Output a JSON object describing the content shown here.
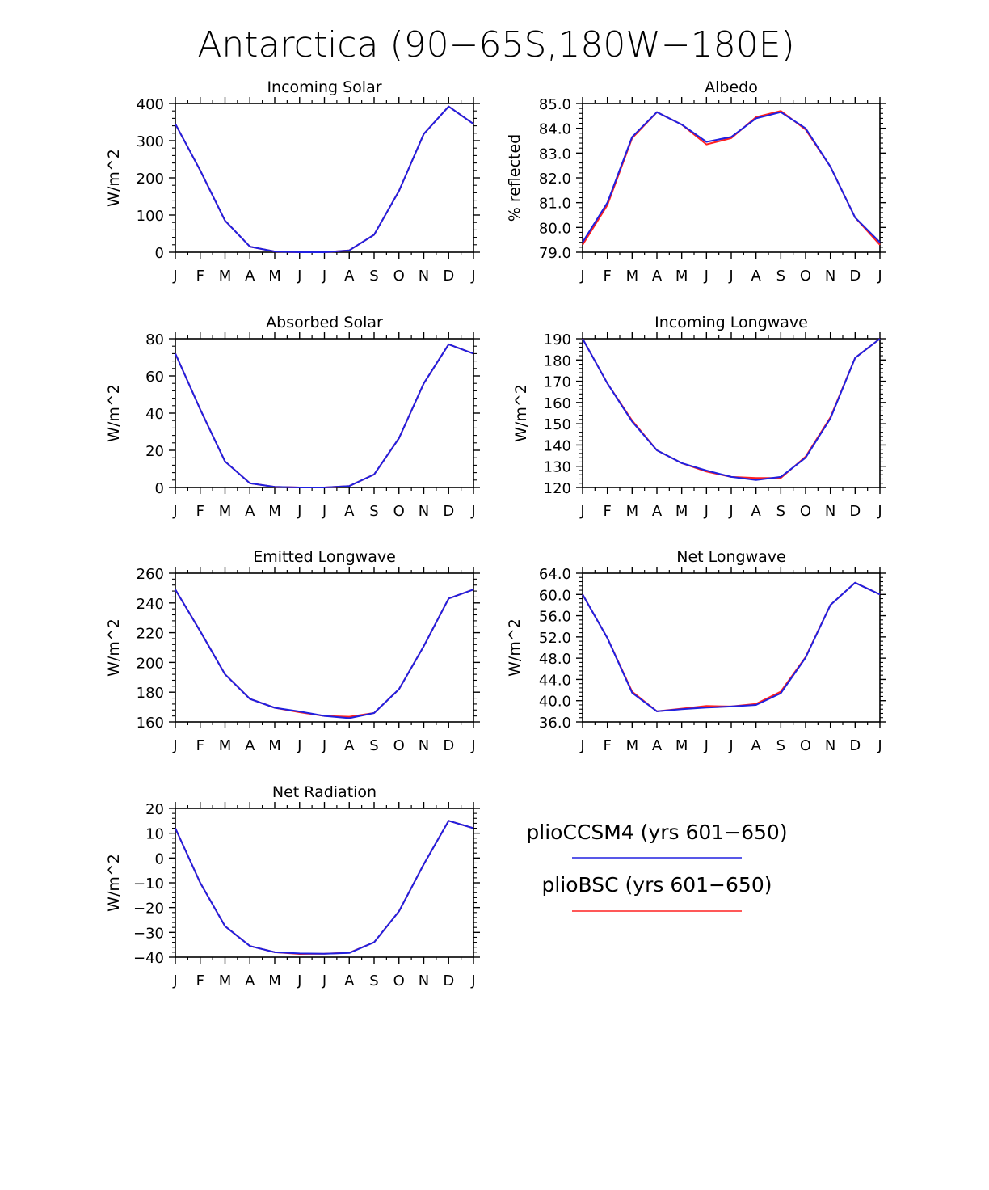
{
  "title": "Antarctica (90−65S,180W−180E)",
  "legend": {
    "items": [
      {
        "label": "plioCCSM4 (yrs 601−650)",
        "color": "#2020e0"
      },
      {
        "label": "plioBSC (yrs 601−650)",
        "color": "#ff2020"
      }
    ]
  },
  "months": [
    "J",
    "F",
    "M",
    "A",
    "M",
    "J",
    "J",
    "A",
    "S",
    "O",
    "N",
    "D",
    "J"
  ],
  "chart_data": [
    {
      "type": "line",
      "title": "Incoming Solar",
      "ylabel": "W/m^2",
      "ylim": [
        0,
        400
      ],
      "yticks": [
        "0",
        "100",
        "200",
        "300",
        "400"
      ],
      "ytick_values": [
        0,
        100,
        200,
        300,
        400
      ],
      "series": [
        {
          "name": "plioBSC (yrs 601−650)",
          "color": "#ff2020",
          "values": [
            345,
            220,
            85,
            15,
            2,
            0,
            0,
            5,
            47,
            165,
            318,
            392,
            345
          ]
        },
        {
          "name": "plioCCSM4 (yrs 601−650)",
          "color": "#2020e0",
          "values": [
            345,
            220,
            85,
            15,
            2,
            0,
            0,
            5,
            47,
            165,
            318,
            392,
            345
          ]
        }
      ]
    },
    {
      "type": "line",
      "title": "Albedo",
      "ylabel": "% reflected",
      "ylim": [
        79,
        85
      ],
      "yticks": [
        "79.0",
        "80.0",
        "81.0",
        "82.0",
        "83.0",
        "84.0",
        "85.0"
      ],
      "ytick_values": [
        79,
        80,
        81,
        82,
        83,
        84,
        85
      ],
      "series": [
        {
          "name": "plioBSC (yrs 601−650)",
          "color": "#ff2020",
          "values": [
            79.3,
            80.9,
            83.6,
            84.65,
            84.15,
            83.35,
            83.6,
            84.45,
            84.7,
            83.95,
            82.45,
            80.4,
            79.3
          ]
        },
        {
          "name": "plioCCSM4 (yrs 601−650)",
          "color": "#2020e0",
          "values": [
            79.4,
            81.0,
            83.65,
            84.65,
            84.15,
            83.45,
            83.65,
            84.4,
            84.65,
            84.0,
            82.45,
            80.4,
            79.4
          ]
        }
      ]
    },
    {
      "type": "line",
      "title": "Absorbed Solar",
      "ylabel": "W/m^2",
      "ylim": [
        0,
        80
      ],
      "yticks": [
        "0",
        "20",
        "40",
        "60",
        "80"
      ],
      "ytick_values": [
        0,
        20,
        40,
        60,
        80
      ],
      "series": [
        {
          "name": "plioBSC (yrs 601−650)",
          "color": "#ff2020",
          "values": [
            72,
            42,
            14,
            2.3,
            0.3,
            0,
            0,
            0.8,
            7,
            26.5,
            56,
            77,
            72
          ]
        },
        {
          "name": "plioCCSM4 (yrs 601−650)",
          "color": "#2020e0",
          "values": [
            72,
            42,
            14,
            2.3,
            0.3,
            0,
            0,
            0.8,
            7,
            26.5,
            56,
            77,
            72
          ]
        }
      ]
    },
    {
      "type": "line",
      "title": "Incoming Longwave",
      "ylabel": "W/m^2",
      "ylim": [
        120,
        190
      ],
      "yticks": [
        "120",
        "130",
        "140",
        "150",
        "160",
        "170",
        "180",
        "190"
      ],
      "ytick_values": [
        120,
        130,
        140,
        150,
        160,
        170,
        180,
        190
      ],
      "series": [
        {
          "name": "plioBSC (yrs 601−650)",
          "color": "#ff2020",
          "values": [
            190,
            169,
            151.5,
            137.5,
            131.5,
            127.5,
            125,
            124.5,
            124.5,
            134.5,
            153,
            181,
            190
          ]
        },
        {
          "name": "plioCCSM4 (yrs 601−650)",
          "color": "#2020e0",
          "values": [
            190,
            169,
            151,
            137.5,
            131.5,
            128,
            125,
            123.5,
            125,
            134,
            152.5,
            181,
            190
          ]
        }
      ]
    },
    {
      "type": "line",
      "title": "Emitted Longwave",
      "ylabel": "W/m^2",
      "ylim": [
        160,
        260
      ],
      "yticks": [
        "160",
        "180",
        "200",
        "220",
        "240",
        "260"
      ],
      "ytick_values": [
        160,
        180,
        200,
        220,
        240,
        260
      ],
      "series": [
        {
          "name": "plioBSC (yrs 601−650)",
          "color": "#ff2020",
          "values": [
            249,
            221,
            192,
            175.5,
            169.5,
            166.5,
            164,
            163.5,
            166,
            182,
            211,
            243,
            249
          ]
        },
        {
          "name": "plioCCSM4 (yrs 601−650)",
          "color": "#2020e0",
          "values": [
            249,
            221,
            192,
            175.5,
            169.5,
            167,
            164,
            162.5,
            166,
            182,
            211,
            243,
            249
          ]
        }
      ]
    },
    {
      "type": "line",
      "title": "Net Longwave",
      "ylabel": "W/m^2",
      "ylim": [
        36,
        64
      ],
      "yticks": [
        "36.0",
        "40.0",
        "44.0",
        "48.0",
        "52.0",
        "56.0",
        "60.0",
        "64.0"
      ],
      "ytick_values": [
        36,
        40,
        44,
        48,
        52,
        56,
        60,
        64
      ],
      "series": [
        {
          "name": "plioBSC (yrs 601−650)",
          "color": "#ff2020",
          "values": [
            60,
            51.8,
            41.7,
            38,
            38.5,
            39,
            38.9,
            39.4,
            41.7,
            48.2,
            58,
            62.2,
            60
          ]
        },
        {
          "name": "plioCCSM4 (yrs 601−650)",
          "color": "#2020e0",
          "values": [
            60,
            51.8,
            41.5,
            38,
            38.4,
            38.7,
            38.9,
            39.2,
            41.4,
            48.1,
            58,
            62.2,
            60
          ]
        }
      ]
    },
    {
      "type": "line",
      "title": "Net Radiation",
      "ylabel": "W/m^2",
      "ylim": [
        -40,
        20
      ],
      "yticks": [
        "−40",
        "−30",
        "−20",
        "−10",
        "0",
        "10",
        "20"
      ],
      "ytick_values": [
        -40,
        -30,
        -20,
        -10,
        0,
        10,
        20
      ],
      "series": [
        {
          "name": "plioBSC (yrs 601−650)",
          "color": "#ff2020",
          "values": [
            12,
            -10,
            -27.5,
            -35.5,
            -38,
            -38.7,
            -38.6,
            -38.2,
            -34,
            -21.5,
            -2.5,
            15,
            12
          ]
        },
        {
          "name": "plioCCSM4 (yrs 601−650)",
          "color": "#2020e0",
          "values": [
            12,
            -10,
            -27.5,
            -35.5,
            -38,
            -38.5,
            -38.6,
            -38.3,
            -34,
            -21.5,
            -2.5,
            15,
            12
          ]
        }
      ]
    }
  ]
}
